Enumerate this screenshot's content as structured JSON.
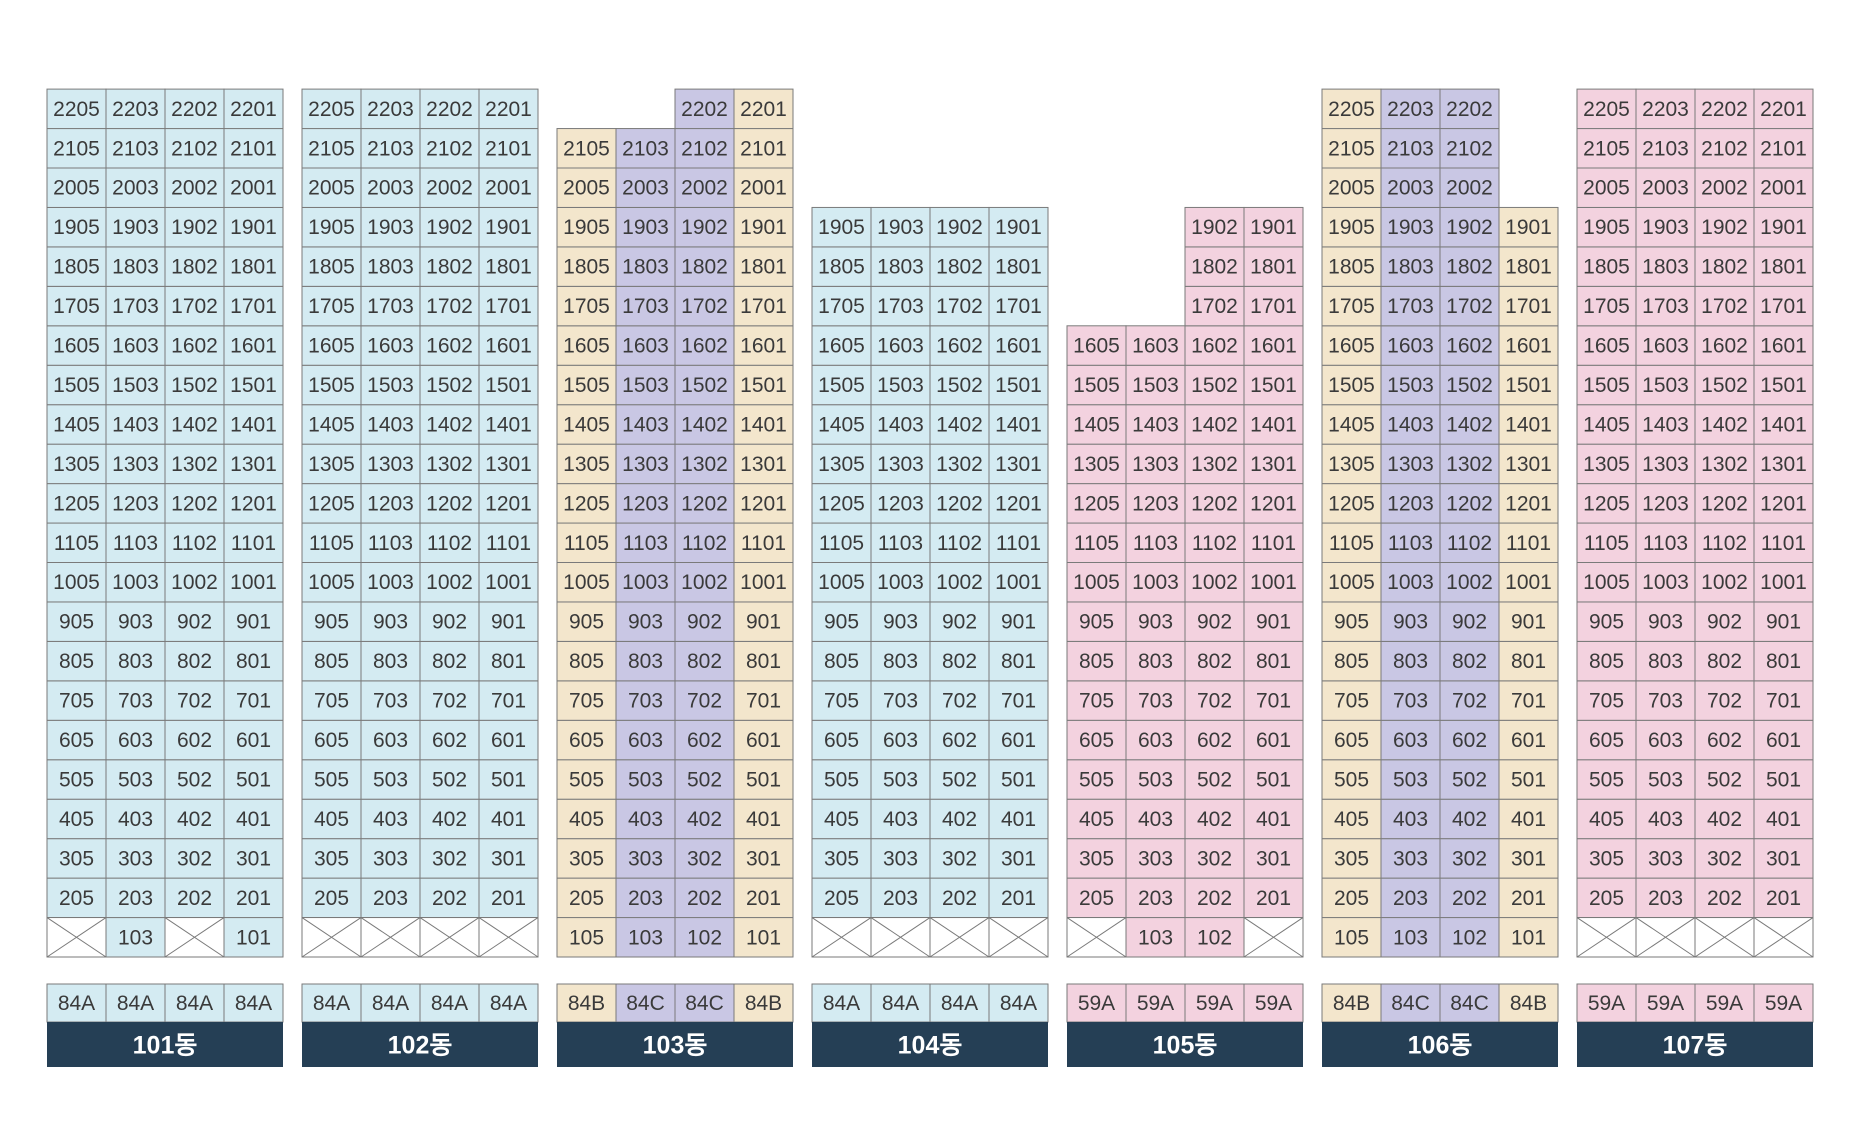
{
  "colors": {
    "84A": "#d4ebf2",
    "84B": "#f3e6cc",
    "84C": "#c9c7e4",
    "59A": "#f3d2df",
    "border": "#7a7a7a",
    "text": "#3a3a3a",
    "label_bg": "#253f55",
    "label_text": "#ffffff",
    "empty": "#ffffff"
  },
  "buildings": [
    {
      "name": "101동",
      "types": [
        "84A",
        "84A",
        "84A",
        "84A"
      ],
      "units": [
        "05",
        "03",
        "02",
        "01"
      ],
      "floors": 22,
      "col_floors": [
        {
          "from": 2,
          "to": 22
        },
        {
          "from": 1,
          "to": 22
        },
        {
          "from": 2,
          "to": 22
        },
        {
          "from": 1,
          "to": 22
        }
      ]
    },
    {
      "name": "102동",
      "types": [
        "84A",
        "84A",
        "84A",
        "84A"
      ],
      "units": [
        "05",
        "03",
        "02",
        "01"
      ],
      "floors": 22,
      "col_floors": [
        {
          "from": 2,
          "to": 22
        },
        {
          "from": 2,
          "to": 22
        },
        {
          "from": 2,
          "to": 22
        },
        {
          "from": 2,
          "to": 22
        }
      ]
    },
    {
      "name": "103동",
      "types": [
        "84B",
        "84C",
        "84C",
        "84B"
      ],
      "units": [
        "05",
        "03",
        "02",
        "01"
      ],
      "floors": 22,
      "col_floors": [
        {
          "from": 1,
          "to": 21
        },
        {
          "from": 1,
          "to": 21
        },
        {
          "from": 1,
          "to": 22
        },
        {
          "from": 1,
          "to": 22
        }
      ]
    },
    {
      "name": "104동",
      "types": [
        "84A",
        "84A",
        "84A",
        "84A"
      ],
      "units": [
        "05",
        "03",
        "02",
        "01"
      ],
      "floors": 22,
      "col_floors": [
        {
          "from": 2,
          "to": 19
        },
        {
          "from": 2,
          "to": 19
        },
        {
          "from": 2,
          "to": 19
        },
        {
          "from": 2,
          "to": 19
        }
      ]
    },
    {
      "name": "105동",
      "types": [
        "59A",
        "59A",
        "59A",
        "59A"
      ],
      "units": [
        "05",
        "03",
        "02",
        "01"
      ],
      "floors": 22,
      "col_floors": [
        {
          "from": 2,
          "to": 16
        },
        {
          "from": 1,
          "to": 16
        },
        {
          "from": 1,
          "to": 19
        },
        {
          "from": 2,
          "to": 19
        }
      ]
    },
    {
      "name": "106동",
      "types": [
        "84B",
        "84C",
        "84C",
        "84B"
      ],
      "units": [
        "05",
        "03",
        "02",
        "01"
      ],
      "floors": 22,
      "col_floors": [
        {
          "from": 1,
          "to": 22
        },
        {
          "from": 1,
          "to": 22
        },
        {
          "from": 1,
          "to": 22
        },
        {
          "from": 1,
          "to": 19
        }
      ]
    },
    {
      "name": "107동",
      "types": [
        "59A",
        "59A",
        "59A",
        "59A"
      ],
      "units": [
        "05",
        "03",
        "02",
        "01"
      ],
      "floors": 22,
      "col_floors": [
        {
          "from": 2,
          "to": 22
        },
        {
          "from": 2,
          "to": 22
        },
        {
          "from": 2,
          "to": 22
        },
        {
          "from": 2,
          "to": 22
        }
      ]
    }
  ]
}
